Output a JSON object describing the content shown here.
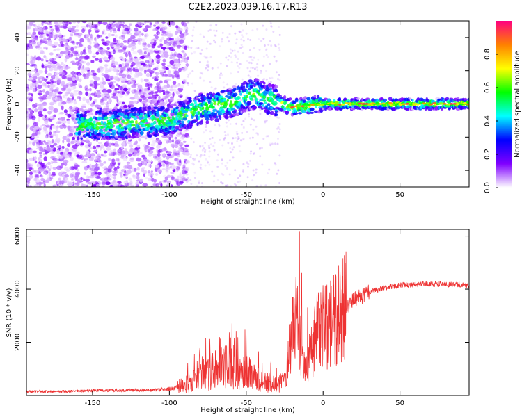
{
  "title": "C2E2.2023.039.16.17.R13",
  "chart_data": [
    {
      "type": "heatmap",
      "xlabel": "Height of straight line (km)",
      "ylabel": "Frequency (Hz)",
      "xlim": [
        -193,
        95
      ],
      "ylim": [
        -50,
        50
      ],
      "xticks": [
        -150,
        -100,
        -50,
        0,
        50
      ],
      "yticks": [
        -40,
        -20,
        0,
        20,
        40
      ],
      "colorbar": {
        "label": "Normalized spectral amplitude",
        "range": [
          0,
          1
        ],
        "ticks": [
          "0.0",
          "0.2",
          "0.4",
          "0.6",
          "0.8"
        ],
        "colors": [
          "#ffffff",
          "#8000ff",
          "#0000ff",
          "#00ffff",
          "#00ff00",
          "#ffff00",
          "#ff8000",
          "#ff0080"
        ]
      },
      "ridge": [
        {
          "x": -150,
          "y": -13
        },
        {
          "x": -100,
          "y": -10
        },
        {
          "x": -80,
          "y": -3
        },
        {
          "x": -60,
          "y": 1
        },
        {
          "x": -45,
          "y": 6
        },
        {
          "x": -35,
          "y": 3
        },
        {
          "x": -20,
          "y": -2
        },
        {
          "x": 0,
          "y": 0
        },
        {
          "x": 95,
          "y": 0
        }
      ]
    },
    {
      "type": "line",
      "xlabel": "Height of straight line (km)",
      "ylabel": "SNR (10 * v/v)",
      "xlim": [
        -193,
        95
      ],
      "ylim": [
        0,
        6250
      ],
      "xticks": [
        -150,
        -100,
        -50,
        0,
        50
      ],
      "yticks": [
        2000,
        4000,
        6000
      ],
      "series": [
        {
          "color": "#ee3333",
          "points": [
            {
              "x": -193,
              "y": 150
            },
            {
              "x": -170,
              "y": 150
            },
            {
              "x": -135,
              "y": 200
            },
            {
              "x": -110,
              "y": 200
            },
            {
              "x": -100,
              "y": 250
            },
            {
              "x": -90,
              "y": 400
            },
            {
              "x": -80,
              "y": 700
            },
            {
              "x": -70,
              "y": 1000
            },
            {
              "x": -60,
              "y": 1100
            },
            {
              "x": -50,
              "y": 900
            },
            {
              "x": -40,
              "y": 550
            },
            {
              "x": -30,
              "y": 400
            },
            {
              "x": -25,
              "y": 500
            },
            {
              "x": -22,
              "y": 1800
            },
            {
              "x": -18,
              "y": 3000
            },
            {
              "x": -15,
              "y": 2000
            },
            {
              "x": -12,
              "y": 900
            },
            {
              "x": -8,
              "y": 1600
            },
            {
              "x": -4,
              "y": 2400
            },
            {
              "x": 0,
              "y": 2600
            },
            {
              "x": 5,
              "y": 2800
            },
            {
              "x": 10,
              "y": 3000
            },
            {
              "x": 15,
              "y": 3300
            },
            {
              "x": 20,
              "y": 3600
            },
            {
              "x": 30,
              "y": 3900
            },
            {
              "x": 40,
              "y": 4050
            },
            {
              "x": 50,
              "y": 4150
            },
            {
              "x": 70,
              "y": 4200
            },
            {
              "x": 95,
              "y": 4150
            }
          ],
          "spikes": [
            {
              "x": -15.5,
              "y": 6150
            },
            {
              "x": -14,
              "y": 4600
            },
            {
              "x": -20,
              "y": 3700
            },
            {
              "x": -10,
              "y": 3300
            }
          ]
        }
      ]
    }
  ]
}
